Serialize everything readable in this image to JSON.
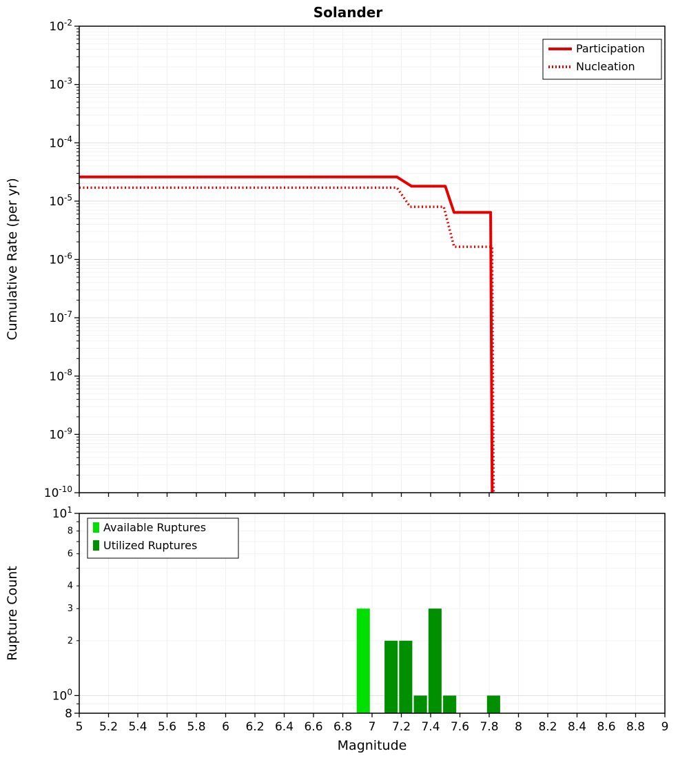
{
  "figure": {
    "title": "Solander",
    "background": "#ffffff"
  },
  "chart_data": [
    {
      "type": "line",
      "name": "cumulative-rate-plot",
      "title": "Solander",
      "xlabel": "",
      "ylabel": "Cumulative Rate (per yr)",
      "xscale": "linear",
      "yscale": "log",
      "xlim": [
        5,
        9
      ],
      "ylim": [
        1e-10,
        0.01
      ],
      "x_tick_step": 0.2,
      "grid": true,
      "y_tick_exponents": [
        -2,
        -3,
        -4,
        -5,
        -6,
        -7,
        -8,
        -9,
        -10
      ],
      "legend_position": "top-right",
      "series": [
        {
          "name": "Participation",
          "color": "#e60000",
          "line_style": "solid",
          "line_width": 4,
          "points": [
            [
              5.0,
              2.6e-05
            ],
            [
              7.17,
              2.6e-05
            ],
            [
              7.27,
              1.8e-05
            ],
            [
              7.5,
              1.8e-05
            ],
            [
              7.56,
              6.4e-06
            ],
            [
              7.81,
              6.4e-06
            ],
            [
              7.82,
              1e-10
            ]
          ]
        },
        {
          "name": "Nucleation",
          "color": "#e60000",
          "line_style": "dotted",
          "line_width": 3.5,
          "points": [
            [
              5.0,
              1.7e-05
            ],
            [
              7.17,
              1.7e-05
            ],
            [
              7.26,
              8e-06
            ],
            [
              7.49,
              8e-06
            ],
            [
              7.56,
              1.65e-06
            ],
            [
              7.82,
              1.65e-06
            ],
            [
              7.83,
              1e-10
            ]
          ]
        }
      ]
    },
    {
      "type": "bar",
      "name": "rupture-count-plot",
      "title": "",
      "xlabel": "Magnitude",
      "ylabel": "Rupture Count",
      "xscale": "linear",
      "yscale": "log",
      "xlim": [
        5,
        9
      ],
      "ylim": [
        0.8,
        10
      ],
      "x_tick_step": 0.2,
      "x_tick_labels": [
        "5",
        "5.2",
        "5.4",
        "5.6",
        "5.8",
        "6",
        "6.2",
        "6.4",
        "6.6",
        "6.8",
        "7",
        "7.2",
        "7.4",
        "7.6",
        "7.8",
        "8",
        "8.2",
        "8.4",
        "8.6",
        "8.8",
        "9"
      ],
      "grid": true,
      "bar_width": 0.09,
      "legend_position": "top-left",
      "y_ticks": {
        "major": [
          {
            "value": 10,
            "exp": 1
          },
          {
            "value": 1,
            "exp": 0
          }
        ],
        "minor_labeled": [
          8,
          6,
          4,
          3,
          2
        ],
        "bottom": {
          "value": 0.8,
          "label": "8"
        }
      },
      "series": [
        {
          "name": "Available Ruptures",
          "color": "#00e000",
          "bars": [
            {
              "x": 6.94,
              "count": 3
            }
          ]
        },
        {
          "name": "Utilized Ruptures",
          "color": "#008f00",
          "bars": [
            {
              "x": 7.13,
              "count": 2
            },
            {
              "x": 7.23,
              "count": 2
            },
            {
              "x": 7.33,
              "count": 1
            },
            {
              "x": 7.43,
              "count": 3
            },
            {
              "x": 7.53,
              "count": 1
            },
            {
              "x": 7.83,
              "count": 1
            }
          ]
        }
      ]
    }
  ]
}
